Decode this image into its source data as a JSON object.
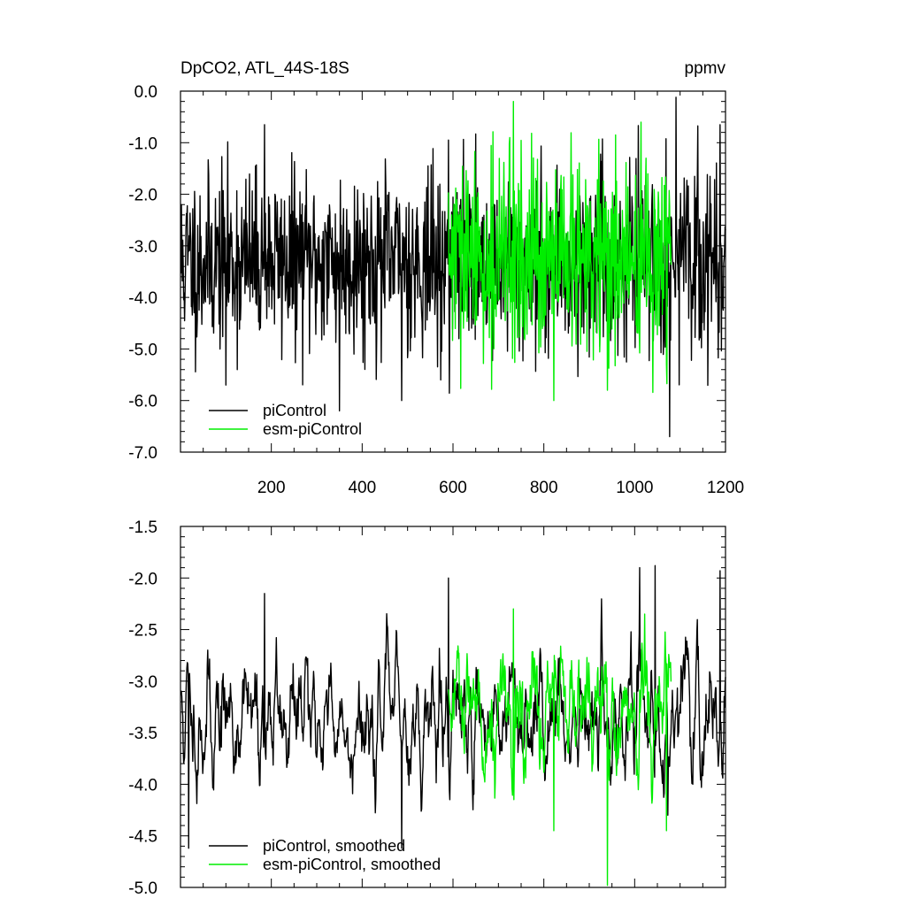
{
  "chart_data": [
    {
      "type": "line",
      "title": "DpCO2, ATL_44S-18S",
      "units": "ppmv",
      "xlabel": "",
      "ylabel": "",
      "xlim": [
        0,
        1200
      ],
      "ylim": [
        -7.0,
        0.0
      ],
      "x_ticks": [
        200,
        400,
        600,
        800,
        1000,
        1200
      ],
      "x_tick_labels": [
        "200",
        "400",
        "600",
        "800",
        "1000",
        "1200"
      ],
      "y_ticks": [
        0.0,
        -1.0,
        -2.0,
        -3.0,
        -4.0,
        -5.0,
        -6.0,
        -7.0
      ],
      "y_tick_labels": [
        "0.0",
        "-1.0",
        "-2.0",
        "-3.0",
        "-4.0",
        "-5.0",
        "-6.0",
        "-7.0"
      ],
      "grid": false,
      "legend_position": "bottom-left",
      "series": [
        {
          "name": "piControl",
          "color": "#000000",
          "x_range": [
            1,
            1200
          ],
          "mean": -3.3,
          "std": 0.85,
          "seed": 11,
          "smooth": false,
          "highlights": [
            [
              350,
              -6.2
            ],
            [
              487,
              -6.0
            ],
            [
              185,
              -0.65
            ],
            [
              1077,
              -6.7
            ],
            [
              1091,
              -0.12
            ],
            [
              1188,
              -0.65
            ],
            [
              100,
              -5.7
            ],
            [
              573,
              -5.6
            ],
            [
              590,
              -0.95
            ]
          ]
        },
        {
          "name": "esm-piControl",
          "color": "#00ee00",
          "x_range": [
            590,
            1080
          ],
          "mean": -3.3,
          "std": 0.95,
          "seed": 29,
          "smooth": false,
          "highlights": [
            [
              733,
              -0.2
            ],
            [
              822,
              -6.0
            ],
            [
              725,
              -0.9
            ],
            [
              940,
              -5.8
            ],
            [
              958,
              -0.85
            ],
            [
              1070,
              -5.3
            ]
          ]
        }
      ]
    },
    {
      "type": "line",
      "title": "",
      "xlabel": "",
      "ylabel": "",
      "xlim": [
        0,
        1200
      ],
      "ylim": [
        -5.0,
        -1.5
      ],
      "x_ticks": [
        200,
        400,
        600,
        800,
        1000,
        1200
      ],
      "x_tick_labels": [],
      "y_ticks": [
        -1.5,
        -2.0,
        -2.5,
        -3.0,
        -3.5,
        -4.0,
        -4.5,
        -5.0
      ],
      "y_tick_labels": [
        "-1.5",
        "-2.0",
        "-2.5",
        "-3.0",
        "-3.5",
        "-4.0",
        "-4.5",
        "-5.0"
      ],
      "grid": false,
      "legend_position": "bottom-left",
      "series": [
        {
          "name": "piControl, smoothed",
          "color": "#000000",
          "x_range": [
            1,
            1200
          ],
          "mean": -3.35,
          "std": 0.38,
          "seed": 11,
          "smooth": true,
          "highlights": [
            [
              18,
              -4.62
            ],
            [
              185,
              -2.15
            ],
            [
              487,
              -4.62
            ],
            [
              590,
              -2.0
            ],
            [
              1011,
              -1.9
            ],
            [
              1045,
              -1.88
            ],
            [
              1073,
              -4.3
            ],
            [
              1188,
              -1.93
            ],
            [
              1197,
              -3.15
            ]
          ]
        },
        {
          "name": "esm-piControl, smoothed",
          "color": "#00ee00",
          "x_range": [
            590,
            1080
          ],
          "mean": -3.35,
          "std": 0.4,
          "seed": 29,
          "smooth": true,
          "highlights": [
            [
              940,
              -4.98
            ],
            [
              733,
              -2.3
            ],
            [
              822,
              -4.45
            ],
            [
              1070,
              -4.45
            ],
            [
              1022,
              -2.35
            ]
          ]
        }
      ]
    }
  ]
}
